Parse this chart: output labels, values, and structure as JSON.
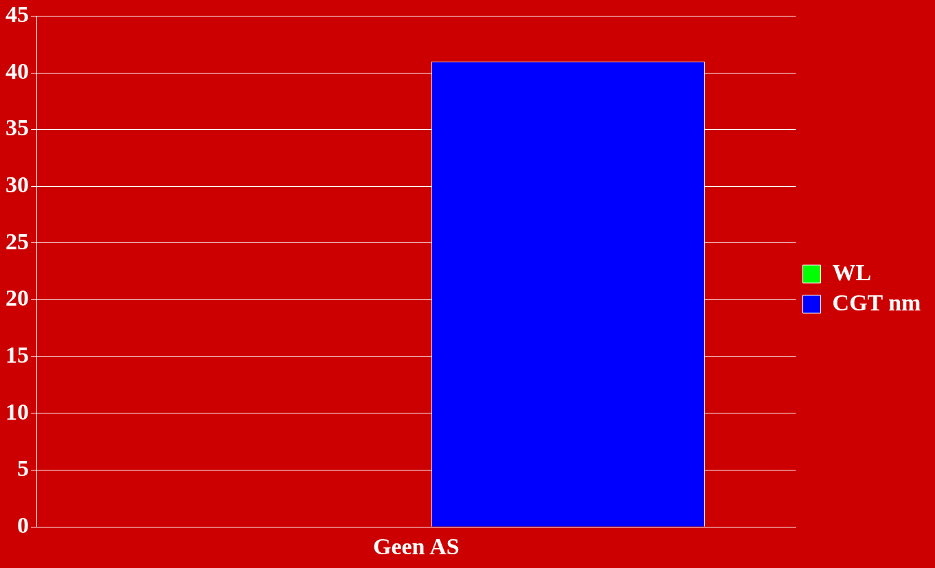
{
  "chart_data": {
    "type": "bar",
    "categories": [
      "Geen AS"
    ],
    "series": [
      {
        "name": "WL",
        "color": "#00ff00",
        "values": [
          0
        ]
      },
      {
        "name": "CGT nm",
        "color": "#0000ff",
        "values": [
          41
        ]
      }
    ],
    "ylim": [
      0,
      45
    ],
    "yticks": [
      0,
      5,
      10,
      15,
      20,
      25,
      30,
      35,
      40,
      45
    ],
    "grid": "y",
    "legend": "right"
  }
}
